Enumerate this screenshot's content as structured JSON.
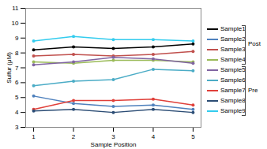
{
  "chart_data": {
    "type": "line",
    "x_label": "Sample Position",
    "y_label": "Sulfur (μM)",
    "x": [
      1,
      2,
      3,
      4,
      5
    ],
    "xlim": [
      0.8,
      5.2
    ],
    "xticks": [
      1,
      2,
      3,
      4,
      5
    ],
    "ylim": [
      3,
      11
    ],
    "yticks": [
      3,
      4,
      5,
      6,
      7,
      8,
      9,
      10,
      11
    ],
    "grid": false,
    "marker": "circle",
    "legend": "right",
    "annotations": [
      "Post",
      "Pre"
    ],
    "series": [
      {
        "name": "Sample1",
        "color": "#000000",
        "values": [
          8.2,
          8.4,
          8.3,
          8.4,
          8.6
        ]
      },
      {
        "name": "Sample2",
        "color": "#4f81bd",
        "values": [
          5.1,
          4.6,
          4.4,
          4.5,
          4.2
        ]
      },
      {
        "name": "Sample3",
        "color": "#c0504d",
        "values": [
          7.8,
          7.9,
          7.8,
          7.9,
          8.1
        ]
      },
      {
        "name": "Sample4",
        "color": "#9bbb59",
        "values": [
          7.4,
          7.3,
          7.5,
          7.5,
          7.4
        ]
      },
      {
        "name": "Sample5",
        "color": "#8064a2",
        "values": [
          7.2,
          7.4,
          7.7,
          7.6,
          7.3
        ]
      },
      {
        "name": "Sample6",
        "color": "#4bacc6",
        "values": [
          5.8,
          6.1,
          6.2,
          6.9,
          6.8
        ]
      },
      {
        "name": "Sample7",
        "color": "#e0403a",
        "values": [
          4.2,
          4.8,
          4.8,
          4.9,
          4.5
        ]
      },
      {
        "name": "Sample8",
        "color": "#2c4d75",
        "values": [
          4.1,
          4.2,
          4.0,
          4.2,
          4.0
        ]
      },
      {
        "name": "Sample9",
        "color": "#33ccee",
        "values": [
          8.8,
          9.1,
          8.9,
          8.9,
          8.8
        ]
      }
    ]
  }
}
